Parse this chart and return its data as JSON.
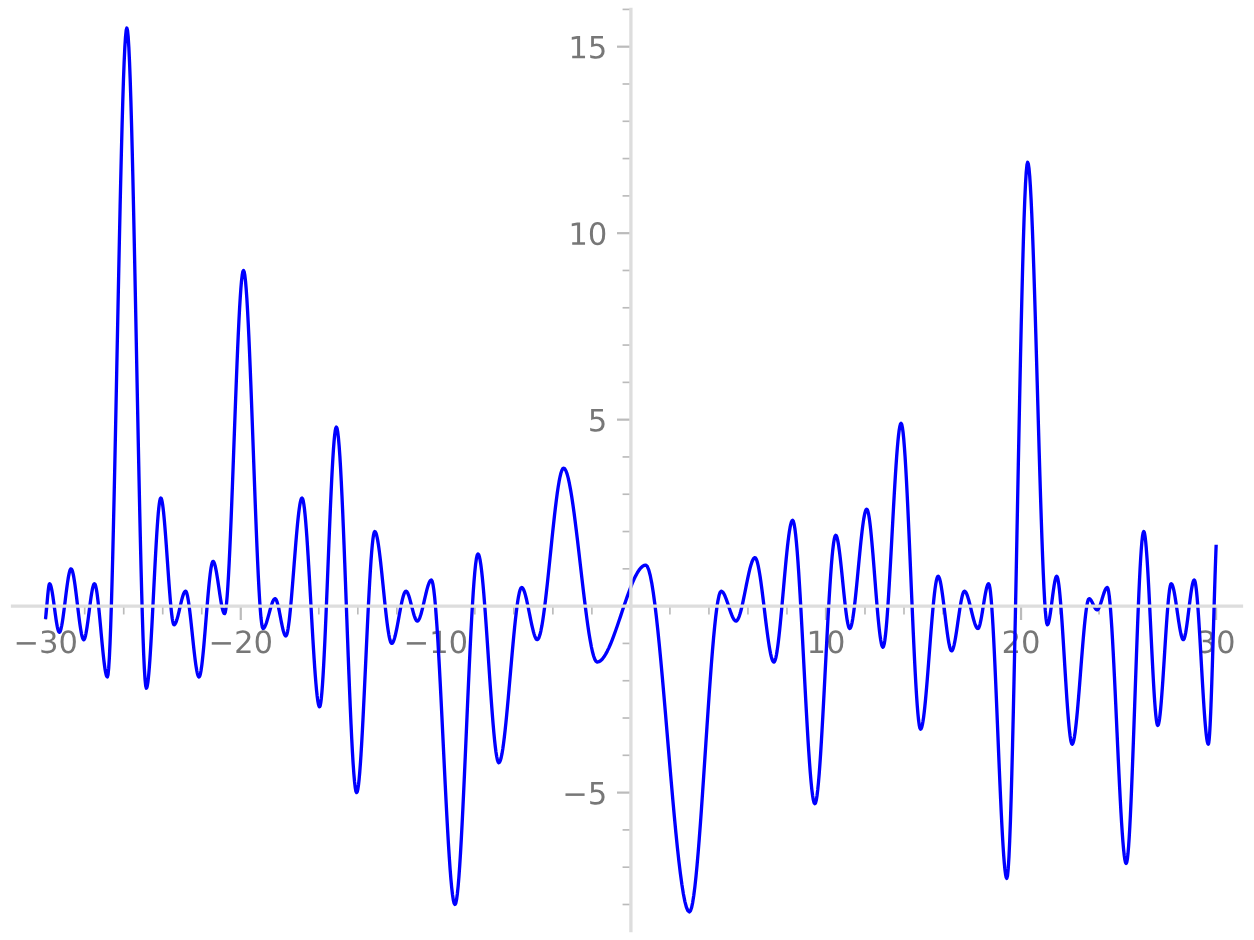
{
  "chart_data": {
    "type": "line",
    "x": [
      -30,
      -29.8,
      -29.3,
      -28.7,
      -28.05,
      -27.5,
      -26.84,
      -25.84,
      -24.84,
      -24.1,
      -23.42,
      -22.83,
      -22.14,
      -21.42,
      -20.83,
      -19.86,
      -18.86,
      -18.24,
      -17.69,
      -16.86,
      -15.96,
      -15.1,
      -14.06,
      -13.13,
      -12.26,
      -11.53,
      -10.95,
      -10.23,
      -9.02,
      -7.84,
      -6.77,
      -5.6,
      -4.8,
      -3.45,
      -1.73,
      0.76,
      3.0,
      4.63,
      5.39,
      6.36,
      7.33,
      8.29,
      9.43,
      10.5,
      11.22,
      12.09,
      12.92,
      13.85,
      14.85,
      15.75,
      16.44,
      17.1,
      17.79,
      18.34,
      19.27,
      20.34,
      21.35,
      21.83,
      22.62,
      23.49,
      23.9,
      24.42,
      25.39,
      26.29,
      27.01,
      27.7,
      28.32,
      28.88,
      29.6,
      30
    ],
    "series": [
      {
        "color": "#0000ff",
        "values": [
          -0.3,
          0.6,
          -0.7,
          1.0,
          -0.9,
          0.6,
          -1.9,
          15.5,
          -2.2,
          2.9,
          -0.5,
          0.4,
          -1.9,
          1.2,
          -0.2,
          9.0,
          -0.6,
          0.2,
          -0.8,
          2.9,
          -2.7,
          4.8,
          -5.0,
          2.0,
          -1.0,
          0.4,
          -0.4,
          0.7,
          -8.0,
          1.4,
          -4.2,
          0.5,
          -0.9,
          3.7,
          -1.5,
          1.1,
          -8.2,
          0.4,
          -0.4,
          1.3,
          -1.5,
          2.3,
          -5.3,
          1.9,
          -0.6,
          2.6,
          -1.1,
          4.9,
          -3.3,
          0.8,
          -1.2,
          0.4,
          -0.6,
          0.6,
          -7.3,
          11.9,
          -0.5,
          0.8,
          -3.7,
          0.2,
          -0.1,
          0.5,
          -6.9,
          2.0,
          -3.2,
          0.6,
          -0.9,
          0.7,
          -3.7,
          1.6
        ]
      }
    ],
    "xlim": [
      -31.7,
      31.3
    ],
    "ylim": [
      -8.7,
      16.0
    ],
    "xticks": [
      -30,
      {
        "value": -28,
        "label": null
      },
      {
        "value": -26,
        "label": null
      },
      {
        "value": -24,
        "label": null
      },
      {
        "value": -22,
        "label": null
      },
      -20,
      {
        "value": -18,
        "label": null
      },
      {
        "value": -16,
        "label": null
      },
      {
        "value": -14,
        "label": null
      },
      {
        "value": -12,
        "label": null
      },
      -10,
      {
        "value": -8,
        "label": null
      },
      {
        "value": -6,
        "label": null
      },
      {
        "value": -4,
        "label": null
      },
      {
        "value": -2,
        "label": null
      },
      {
        "value": 2,
        "label": null
      },
      {
        "value": 4,
        "label": null
      },
      {
        "value": 6,
        "label": null
      },
      {
        "value": 8,
        "label": null
      },
      10,
      {
        "value": 12,
        "label": null
      },
      {
        "value": 14,
        "label": null
      },
      {
        "value": 16,
        "label": null
      },
      {
        "value": 18,
        "label": null
      },
      20,
      {
        "value": 22,
        "label": null
      },
      {
        "value": 24,
        "label": null
      },
      {
        "value": 26,
        "label": null
      },
      {
        "value": 28,
        "label": null
      },
      30
    ],
    "yticks": [
      {
        "value": -8,
        "label": null
      },
      {
        "value": -7,
        "label": null
      },
      {
        "value": -6,
        "label": null
      },
      -5,
      {
        "value": -4,
        "label": null
      },
      {
        "value": -3,
        "label": null
      },
      {
        "value": -2,
        "label": null
      },
      {
        "value": -1,
        "label": null
      },
      {
        "value": 1,
        "label": null
      },
      {
        "value": 2,
        "label": null
      },
      {
        "value": 3,
        "label": null
      },
      {
        "value": 4,
        "label": null
      },
      5,
      {
        "value": 6,
        "label": null
      },
      {
        "value": 7,
        "label": null
      },
      {
        "value": 8,
        "label": null
      },
      {
        "value": 9,
        "label": null
      },
      10,
      {
        "value": 11,
        "label": null
      },
      {
        "value": 12,
        "label": null
      },
      {
        "value": 13,
        "label": null
      },
      {
        "value": 14,
        "label": null
      },
      15,
      {
        "value": 16,
        "label": null
      }
    ],
    "marker": "none",
    "line_style": "solid",
    "grid": false
  }
}
